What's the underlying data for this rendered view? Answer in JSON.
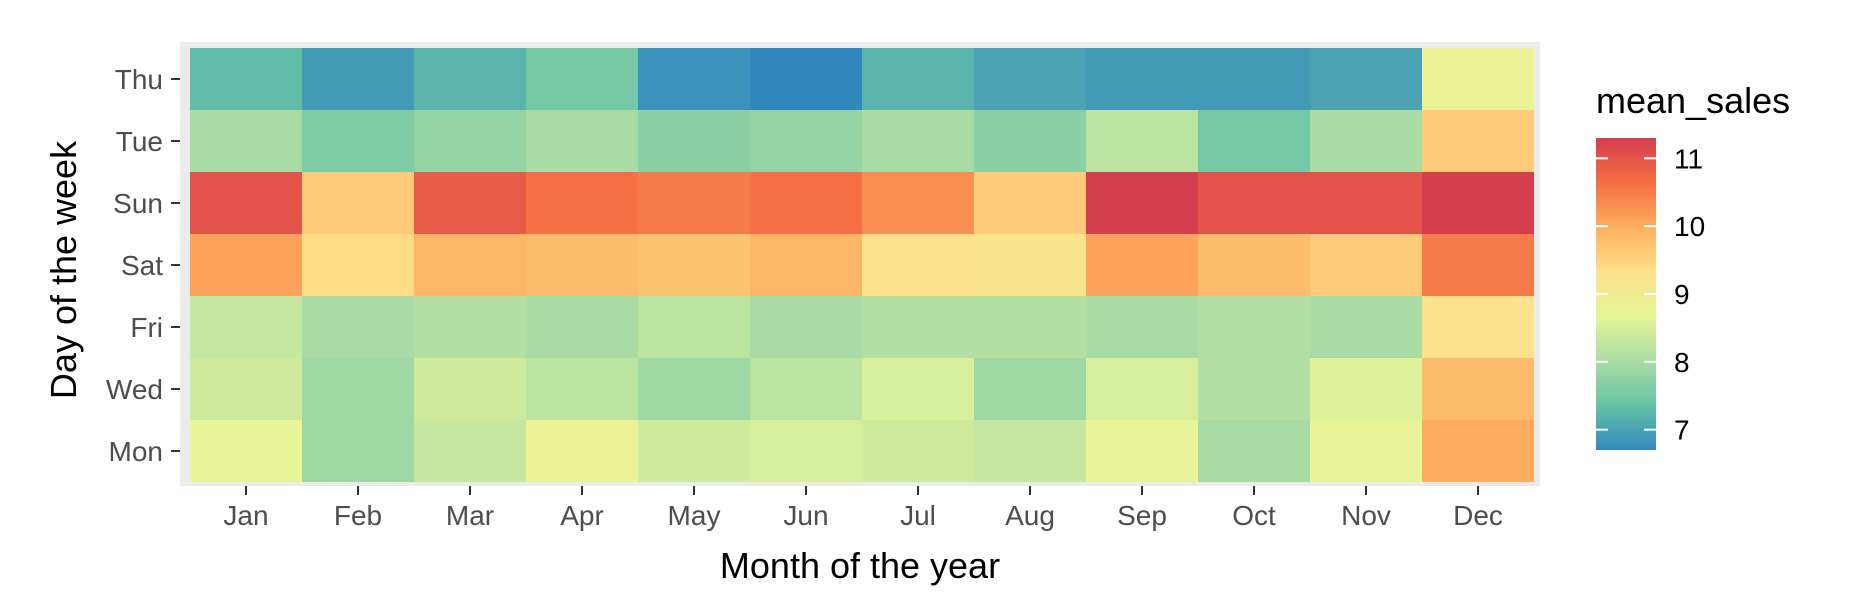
{
  "chart_data": {
    "type": "heatmap",
    "title": "",
    "xlabel": "Month of the year",
    "ylabel": "Day of the week",
    "x_categories": [
      "Jan",
      "Feb",
      "Mar",
      "Apr",
      "May",
      "Jun",
      "Jul",
      "Aug",
      "Sep",
      "Oct",
      "Nov",
      "Dec"
    ],
    "y_categories": [
      "Thu",
      "Tue",
      "Sun",
      "Sat",
      "Fri",
      "Wed",
      "Mon"
    ],
    "values": [
      [
        7.3,
        6.9,
        7.2,
        7.5,
        6.8,
        6.7,
        7.2,
        7.0,
        6.9,
        6.9,
        7.0,
        8.8
      ],
      [
        8.0,
        7.6,
        7.8,
        8.0,
        7.7,
        7.8,
        8.0,
        7.7,
        8.2,
        7.5,
        8.0,
        9.6
      ],
      [
        11.0,
        9.6,
        10.9,
        10.6,
        10.5,
        10.6,
        10.3,
        9.6,
        11.3,
        11.0,
        11.0,
        11.3
      ],
      [
        10.1,
        9.4,
        9.9,
        9.8,
        9.7,
        9.9,
        9.3,
        9.2,
        10.1,
        9.8,
        9.6,
        10.5
      ],
      [
        8.3,
        8.0,
        8.1,
        8.0,
        8.2,
        8.0,
        8.1,
        8.1,
        8.0,
        8.1,
        8.0,
        9.3
      ],
      [
        8.4,
        7.9,
        8.4,
        8.2,
        7.9,
        8.2,
        8.5,
        7.9,
        8.5,
        8.1,
        8.6,
        9.8
      ],
      [
        8.7,
        7.9,
        8.3,
        8.8,
        8.4,
        8.5,
        8.4,
        8.3,
        8.7,
        8.0,
        8.7,
        10.0
      ]
    ],
    "value_range": [
      6.7,
      11.3
    ],
    "colorscale": [
      "#3288bd",
      "#66c2a5",
      "#abdda4",
      "#e6f598",
      "#fee08b",
      "#fdae61",
      "#f46d43",
      "#d53e4f"
    ],
    "legend": {
      "title": "mean_sales",
      "ticks": [
        7,
        8,
        9,
        10,
        11
      ],
      "placement": "right"
    },
    "panel_background": "#ebebeb",
    "grid": true
  }
}
